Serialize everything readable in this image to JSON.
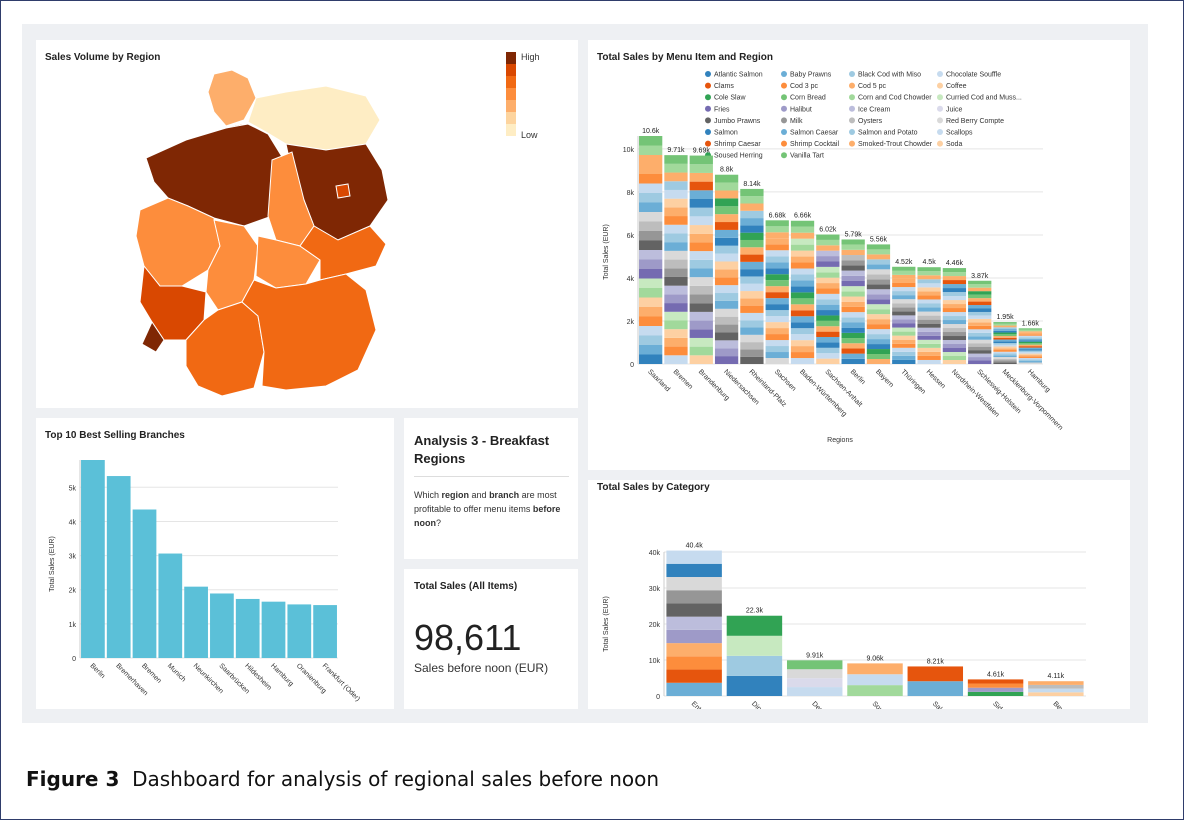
{
  "caption": {
    "label": "Figure 3",
    "text": "Dashboard for analysis of regional sales before noon"
  },
  "map": {
    "title": "Sales Volume by Region",
    "legend": {
      "high": "High",
      "low": "Low",
      "colors": [
        "#7f2704",
        "#d94801",
        "#f16913",
        "#fd8d3c",
        "#fdae6b",
        "#fdd49e",
        "#feedc4"
      ]
    }
  },
  "markdown": {
    "title": "Analysis 3 - Breakfast Regions",
    "text_pre": "Which ",
    "b1": "region",
    "text_mid1": " and ",
    "b2": "branch",
    "text_mid2": " are most profitable to offer menu items ",
    "b3": "before noon",
    "text_post": "?"
  },
  "bignumber": {
    "title": "Total Sales (All Items)",
    "value": "98,611",
    "subtitle": "Sales before noon (EUR)"
  },
  "chart_data": [
    {
      "id": "menu_region",
      "type": "bar",
      "stacked": true,
      "title": "Total Sales by Menu Item and Region",
      "xlabel": "Regions",
      "ylabel": "Total Sales (EUR)",
      "ylim": [
        0,
        10600
      ],
      "yticks": [
        0,
        2000,
        4000,
        6000,
        8000,
        10000
      ],
      "ytick_labels": [
        "0",
        "2k",
        "4k",
        "6k",
        "8k",
        "10k"
      ],
      "categories": [
        "Saarland",
        "Bremen",
        "Brandenburg",
        "Niedersachsen",
        "Rheinland-Pfalz",
        "Sachsen",
        "Baden-Württemberg",
        "Sachsen-Anhalt",
        "Berlin",
        "Bayern",
        "Thüringen",
        "Hessen",
        "Nordrhein-Westfalen",
        "Schleswig-Holstein",
        "Mecklenburg-Vorpommern",
        "Hamburg"
      ],
      "totals": [
        10600,
        9710,
        9690,
        8800,
        8140,
        6680,
        6660,
        6020,
        5790,
        5560,
        4520,
        4500,
        4460,
        3870,
        1950,
        1660
      ],
      "total_labels": [
        "10.6k",
        "9.71k",
        "9.69k",
        "8.8k",
        "8.14k",
        "6.68k",
        "6.66k",
        "6.02k",
        "5.79k",
        "5.56k",
        "4.52k",
        "4.5k",
        "4.46k",
        "3.87k",
        "1.95k",
        "1.66k"
      ],
      "legend": [
        {
          "name": "Atlantic Salmon",
          "color": "#3182bd"
        },
        {
          "name": "Baby Prawns",
          "color": "#6baed6"
        },
        {
          "name": "Black Cod with Miso",
          "color": "#9ecae1"
        },
        {
          "name": "Chocolate Souffle",
          "color": "#c6dbef"
        },
        {
          "name": "Clams",
          "color": "#e6550d"
        },
        {
          "name": "Cod 3 pc",
          "color": "#fd8d3c"
        },
        {
          "name": "Cod 5 pc",
          "color": "#fdae6b"
        },
        {
          "name": "Coffee",
          "color": "#fdd0a2"
        },
        {
          "name": "Cole Slaw",
          "color": "#31a354"
        },
        {
          "name": "Corn Bread",
          "color": "#74c476"
        },
        {
          "name": "Corn and Cod Chowder",
          "color": "#a1d99b"
        },
        {
          "name": "Curried Cod and Muss...",
          "color": "#c7e9c0"
        },
        {
          "name": "Fries",
          "color": "#756bb1"
        },
        {
          "name": "Halibut",
          "color": "#9e9ac8"
        },
        {
          "name": "Ice Cream",
          "color": "#bcbddc"
        },
        {
          "name": "Juice",
          "color": "#dadaeb"
        },
        {
          "name": "Jumbo Prawns",
          "color": "#636363"
        },
        {
          "name": "Milk",
          "color": "#969696"
        },
        {
          "name": "Oysters",
          "color": "#bdbdbd"
        },
        {
          "name": "Red Berry Compte",
          "color": "#d9d9d9"
        },
        {
          "name": "Salmon",
          "color": "#3182bd"
        },
        {
          "name": "Salmon Caesar",
          "color": "#6baed6"
        },
        {
          "name": "Salmon and Potato",
          "color": "#9ecae1"
        },
        {
          "name": "Scallops",
          "color": "#c6dbef"
        },
        {
          "name": "Shrimp Caesar",
          "color": "#e6550d"
        },
        {
          "name": "Shrimp Cocktail",
          "color": "#fd8d3c"
        },
        {
          "name": "Smoked-Trout Chowder",
          "color": "#fdae6b"
        },
        {
          "name": "Soda",
          "color": "#fdd0a2"
        },
        {
          "name": "Soused Herring",
          "color": "#31a354"
        },
        {
          "name": "Vanilla Tart",
          "color": "#74c476"
        }
      ]
    },
    {
      "id": "branches",
      "type": "bar",
      "title": "Top 10 Best Selling Branches",
      "xlabel": "",
      "ylabel": "Total Sales (EUR)",
      "ylim": [
        0,
        5800
      ],
      "yticks": [
        0,
        1000,
        2000,
        3000,
        4000,
        5000
      ],
      "ytick_labels": [
        "0",
        "1k",
        "2k",
        "3k",
        "4k",
        "5k"
      ],
      "categories": [
        "Berlin",
        "Bremerhaven",
        "Bremen",
        "Munich",
        "Neunkirchen",
        "Saarbrücken",
        "Hildesheim",
        "Hamburg",
        "Oranienburg",
        "Frankfurt (Oder)"
      ],
      "values": [
        5800,
        5330,
        4350,
        3060,
        2090,
        1890,
        1730,
        1650,
        1570,
        1550
      ],
      "color": "#5bc0d8"
    },
    {
      "id": "category",
      "type": "bar",
      "stacked": true,
      "title": "Total Sales by Category",
      "xlabel": "",
      "ylabel": "Total Sales (EUR)",
      "ylim": [
        0,
        40000
      ],
      "yticks": [
        0,
        10000,
        20000,
        30000,
        40000
      ],
      "ytick_labels": [
        "0",
        "10k",
        "20k",
        "30k",
        "40k"
      ],
      "categories": [
        "Entrée",
        "Dinner",
        "Dessert",
        "Soup",
        "Salad",
        "Side",
        "Beverage"
      ],
      "totals": [
        40400,
        22300,
        9910,
        9060,
        8210,
        4610,
        4110
      ],
      "total_labels": [
        "40.4k",
        "22.3k",
        "9.91k",
        "9.06k",
        "8.21k",
        "4.61k",
        "4.11k"
      ]
    }
  ]
}
